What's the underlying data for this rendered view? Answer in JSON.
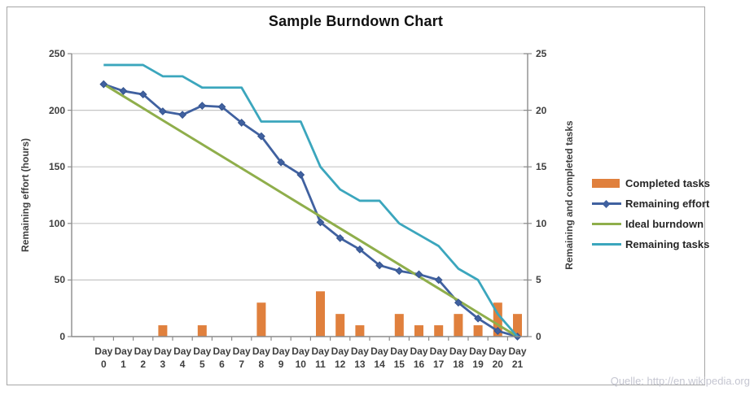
{
  "title": "Sample Burndown Chart",
  "source_note": "Quelle: http://en.wikipedia.org",
  "colors": {
    "grid": "#c6c6c6",
    "axis": "#8c8c8c",
    "tick_text": "#3f3f3f",
    "title_text": "#111111",
    "source_text": "#c5c6d1",
    "frame_border": "#a6a6a6",
    "bar_orange": "#e0803d",
    "effort_blue": "#4061a0",
    "ideal_green": "#8fae4b",
    "tasks_teal": "#3ba6bd"
  },
  "chart_data": {
    "type": "combo",
    "title": "Sample Burndown Chart",
    "grid": "horizontal",
    "legend_position": "right",
    "categories": [
      "Day 0",
      "Day 1",
      "Day 2",
      "Day 3",
      "Day 4",
      "Day 5",
      "Day 6",
      "Day 7",
      "Day 8",
      "Day 9",
      "Day 10",
      "Day 11",
      "Day 12",
      "Day 13",
      "Day 14",
      "Day 15",
      "Day 16",
      "Day 17",
      "Day 18",
      "Day 19",
      "Day 20",
      "Day 21"
    ],
    "left_axis": {
      "label": "Remaining effort (hours)",
      "min": 0,
      "max": 250,
      "ticks": [
        0,
        50,
        100,
        150,
        200,
        250
      ]
    },
    "right_axis": {
      "label": "Remaining and completed tasks",
      "min": 0,
      "max": 25,
      "ticks": [
        0,
        5,
        10,
        15,
        20,
        25
      ]
    },
    "series": [
      {
        "name": "Completed tasks",
        "type": "bar",
        "axis": "right",
        "color": "#e0803d",
        "values": [
          0,
          0,
          0,
          1,
          0,
          1,
          0,
          0,
          3,
          0,
          0,
          4,
          2,
          1,
          0,
          2,
          1,
          1,
          2,
          1,
          3,
          2
        ]
      },
      {
        "name": "Remaining effort",
        "type": "line",
        "marker": "diamond",
        "axis": "left",
        "color": "#4061a0",
        "values": [
          223,
          217,
          214,
          199,
          196,
          204,
          203,
          189,
          177,
          154,
          143,
          101,
          87,
          77,
          63,
          58,
          55,
          50,
          30,
          16,
          5,
          0
        ]
      },
      {
        "name": "Ideal burndown",
        "type": "line",
        "axis": "left",
        "color": "#8fae4b",
        "values": [
          223,
          212.4,
          201.8,
          191.1,
          180.5,
          169.9,
          159.3,
          148.7,
          138.1,
          127.4,
          116.8,
          106.2,
          95.6,
          85,
          74.3,
          63.7,
          53.1,
          42.5,
          31.9,
          21.2,
          10.6,
          0
        ]
      },
      {
        "name": "Remaining tasks",
        "type": "line",
        "axis": "right",
        "color": "#3ba6bd",
        "values": [
          24,
          24,
          24,
          23,
          23,
          22,
          22,
          22,
          19,
          19,
          19,
          15,
          13,
          12,
          12,
          10,
          9,
          8,
          6,
          5,
          2,
          0
        ]
      }
    ]
  }
}
